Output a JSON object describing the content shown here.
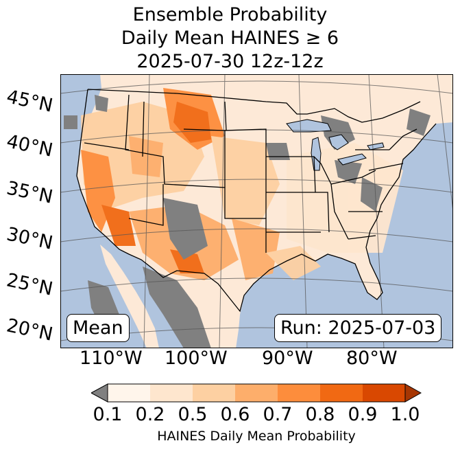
{
  "title": {
    "line1": "Ensemble Probability",
    "line2": "Daily Mean HAINES ≥ 6",
    "line3": "2025-07-30 12z-12z"
  },
  "map": {
    "extent": "Continental United States",
    "latitude_labels": [
      "45°N",
      "40°N",
      "35°N",
      "30°N",
      "25°N",
      "20°N"
    ],
    "longitude_labels": [
      "110°W",
      "100°W",
      "90°W",
      "80°W"
    ],
    "colors": {
      "ocean": "#b0c4de",
      "land": "#fde9d7",
      "missing": "#808080",
      "borders": "#000000",
      "graticule": "#555555"
    }
  },
  "annotations": {
    "statistic": "Mean",
    "run": "Run: 2025-07-03"
  },
  "colorbar": {
    "title": "HAINES Daily Mean Probability",
    "ticks": [
      "0.1",
      "0.2",
      "0.5",
      "0.6",
      "0.7",
      "0.8",
      "0.9",
      "1.0"
    ],
    "under_color": "#808080",
    "bin_colors": [
      "#fff5eb",
      "#fee6ce",
      "#fdd0a2",
      "#fdae6b",
      "#fd8d3c",
      "#f16913",
      "#d94801"
    ],
    "over_color": "#a63603"
  }
}
